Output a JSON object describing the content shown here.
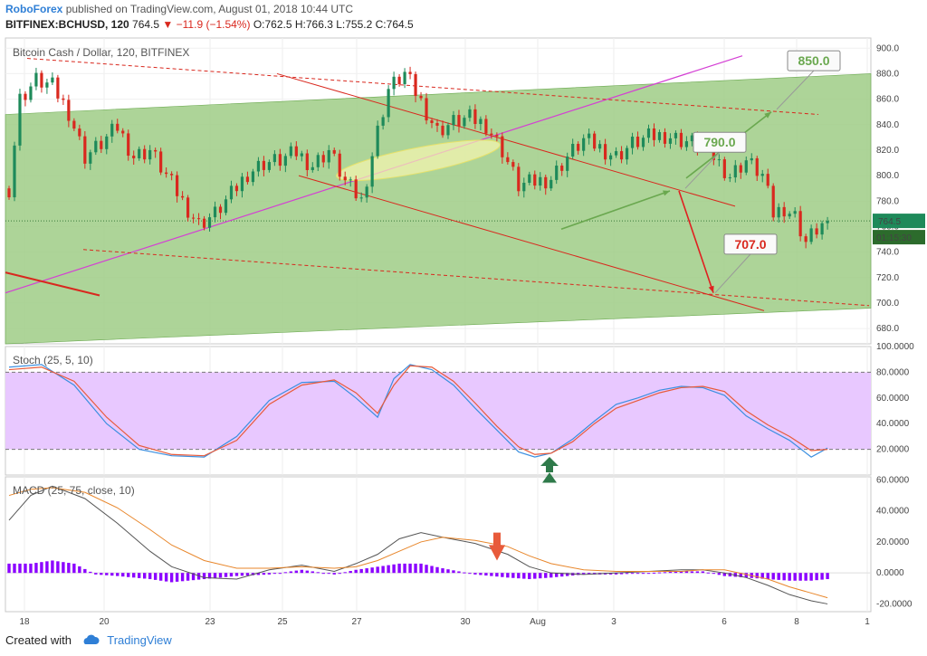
{
  "header": {
    "author": "RoboForex",
    "published": "published on TradingView.com, August 01, 2018 10:44 UTC",
    "symbol": "BITFINEX:BCHUSD, 120",
    "last": "764.5",
    "change": "−11.9 (−1.54%)",
    "open": "O:762.5",
    "high": "H:766.3",
    "low": "L:755.2",
    "close": "C:764.5"
  },
  "footer": {
    "created_with": "Created with",
    "brand": "TradingView"
  },
  "colors": {
    "up": "#1e8a5a",
    "down": "#d9281e",
    "channel_fill": "#9fcc86",
    "stoch_band": "#e8c8ff",
    "macd_hist": "#8b00ff",
    "magenta": "#d43fd4",
    "ann_green": "#6aa84f",
    "ann_red": "#e02020",
    "signal_arrow": "#2f7a4a"
  },
  "chart_data": [
    {
      "type": "candlestick",
      "title": "Bitcoin Cash / Dollar, 120, BITFINEX",
      "x_ticks": [
        "18",
        "20",
        "23",
        "25",
        "27",
        "30",
        "Aug",
        "3",
        "6",
        "8",
        "1"
      ],
      "y_ticks": [
        680,
        700,
        720,
        740,
        760,
        780,
        800,
        820,
        840,
        860,
        880,
        900
      ],
      "ylim": [
        668,
        908
      ],
      "last_price_label": "764.5",
      "countdown_label": "01:15:30",
      "annotations": [
        "850.0",
        "790.0",
        "707.0"
      ],
      "close_path": [
        {
          "t": 0,
          "c": 790
        },
        {
          "t": 2,
          "c": 860
        },
        {
          "t": 5,
          "c": 875
        },
        {
          "t": 8,
          "c": 870
        },
        {
          "t": 11,
          "c": 850
        },
        {
          "t": 14,
          "c": 815
        },
        {
          "t": 17,
          "c": 825
        },
        {
          "t": 20,
          "c": 838
        },
        {
          "t": 23,
          "c": 815
        },
        {
          "t": 26,
          "c": 820
        },
        {
          "t": 29,
          "c": 800
        },
        {
          "t": 32,
          "c": 780
        },
        {
          "t": 35,
          "c": 762
        },
        {
          "t": 38,
          "c": 770
        },
        {
          "t": 41,
          "c": 785
        },
        {
          "t": 44,
          "c": 802
        },
        {
          "t": 47,
          "c": 810
        },
        {
          "t": 50,
          "c": 812
        },
        {
          "t": 53,
          "c": 818
        },
        {
          "t": 56,
          "c": 808
        },
        {
          "t": 59,
          "c": 820
        },
        {
          "t": 62,
          "c": 795
        },
        {
          "t": 65,
          "c": 780
        },
        {
          "t": 68,
          "c": 835
        },
        {
          "t": 70,
          "c": 868
        },
        {
          "t": 73,
          "c": 880
        },
        {
          "t": 76,
          "c": 858
        },
        {
          "t": 79,
          "c": 835
        },
        {
          "t": 82,
          "c": 842
        },
        {
          "t": 85,
          "c": 845
        },
        {
          "t": 88,
          "c": 840
        },
        {
          "t": 91,
          "c": 820
        },
        {
          "t": 94,
          "c": 792
        },
        {
          "t": 97,
          "c": 795
        },
        {
          "t": 100,
          "c": 798
        },
        {
          "t": 103,
          "c": 815
        },
        {
          "t": 106,
          "c": 828
        },
        {
          "t": 109,
          "c": 822
        },
        {
          "t": 112,
          "c": 815
        },
        {
          "t": 115,
          "c": 825
        },
        {
          "t": 118,
          "c": 830
        },
        {
          "t": 121,
          "c": 832
        },
        {
          "t": 124,
          "c": 828
        },
        {
          "t": 127,
          "c": 825
        },
        {
          "t": 130,
          "c": 815
        },
        {
          "t": 133,
          "c": 800
        },
        {
          "t": 136,
          "c": 812
        },
        {
          "t": 139,
          "c": 800
        },
        {
          "t": 141,
          "c": 770
        },
        {
          "t": 143,
          "c": 775
        },
        {
          "t": 145,
          "c": 768
        },
        {
          "t": 147,
          "c": 748
        },
        {
          "t": 149,
          "c": 758
        },
        {
          "t": 151,
          "c": 764.5
        }
      ]
    },
    {
      "type": "line",
      "title": "Stoch (25, 5, 10)",
      "y_ticks": [
        20,
        40,
        60,
        80,
        100
      ],
      "ylim": [
        0,
        100
      ],
      "levels": [
        20,
        80
      ],
      "series": [
        {
          "points": [
            [
              0,
              84
            ],
            [
              6,
              86
            ],
            [
              12,
              70
            ],
            [
              18,
              40
            ],
            [
              24,
              20
            ],
            [
              30,
              15
            ],
            [
              36,
              14
            ],
            [
              42,
              30
            ],
            [
              48,
              58
            ],
            [
              54,
              72
            ],
            [
              60,
              73
            ],
            [
              64,
              60
            ],
            [
              68,
              45
            ],
            [
              71,
              75
            ],
            [
              74,
              86
            ],
            [
              78,
              82
            ],
            [
              82,
              70
            ],
            [
              86,
              52
            ],
            [
              90,
              35
            ],
            [
              94,
              18
            ],
            [
              97,
              14
            ],
            [
              100,
              17
            ],
            [
              104,
              28
            ],
            [
              108,
              42
            ],
            [
              112,
              55
            ],
            [
              116,
              60
            ],
            [
              120,
              66
            ],
            [
              124,
              69
            ],
            [
              128,
              68
            ],
            [
              132,
              62
            ],
            [
              136,
              46
            ],
            [
              140,
              36
            ],
            [
              144,
              27
            ],
            [
              148,
              14
            ],
            [
              151,
              21
            ]
          ]
        },
        {
          "points": [
            [
              0,
              82
            ],
            [
              6,
              84
            ],
            [
              12,
              73
            ],
            [
              18,
              45
            ],
            [
              24,
              23
            ],
            [
              30,
              16
            ],
            [
              36,
              15
            ],
            [
              42,
              27
            ],
            [
              48,
              55
            ],
            [
              54,
              70
            ],
            [
              60,
              74
            ],
            [
              64,
              64
            ],
            [
              68,
              48
            ],
            [
              71,
              70
            ],
            [
              74,
              85
            ],
            [
              78,
              84
            ],
            [
              82,
              73
            ],
            [
              86,
              56
            ],
            [
              90,
              38
            ],
            [
              94,
              22
            ],
            [
              97,
              16
            ],
            [
              100,
              17
            ],
            [
              104,
              26
            ],
            [
              108,
              40
            ],
            [
              112,
              52
            ],
            [
              116,
              58
            ],
            [
              120,
              64
            ],
            [
              124,
              68
            ],
            [
              128,
              69
            ],
            [
              132,
              65
            ],
            [
              136,
              50
            ],
            [
              140,
              39
            ],
            [
              144,
              30
            ],
            [
              148,
              19
            ],
            [
              151,
              20
            ]
          ]
        }
      ]
    },
    {
      "type": "line+histogram",
      "title": "MACD (25, 75, close, 10)",
      "y_ticks": [
        -20,
        0,
        20,
        40,
        60
      ],
      "ylim": [
        -25,
        62
      ],
      "series": [
        {
          "points": [
            [
              0,
              34
            ],
            [
              4,
              50
            ],
            [
              8,
              56
            ],
            [
              14,
              48
            ],
            [
              20,
              32
            ],
            [
              26,
              14
            ],
            [
              30,
              4
            ],
            [
              36,
              -3
            ],
            [
              42,
              -4
            ],
            [
              48,
              2
            ],
            [
              54,
              5
            ],
            [
              60,
              1
            ],
            [
              64,
              6
            ],
            [
              68,
              12
            ],
            [
              72,
              22
            ],
            [
              76,
              26
            ],
            [
              80,
              23
            ],
            [
              86,
              19
            ],
            [
              92,
              12
            ],
            [
              96,
              4
            ],
            [
              100,
              0
            ],
            [
              106,
              -1
            ],
            [
              112,
              0
            ],
            [
              118,
              1
            ],
            [
              124,
              2
            ],
            [
              128,
              2
            ],
            [
              132,
              0
            ],
            [
              136,
              -3
            ],
            [
              140,
              -8
            ],
            [
              144,
              -14
            ],
            [
              148,
              -18
            ],
            [
              151,
              -20
            ]
          ]
        },
        {
          "points": [
            [
              0,
              50
            ],
            [
              4,
              54
            ],
            [
              8,
              55
            ],
            [
              14,
              52
            ],
            [
              20,
              42
            ],
            [
              26,
              28
            ],
            [
              30,
              18
            ],
            [
              36,
              8
            ],
            [
              42,
              3
            ],
            [
              48,
              3
            ],
            [
              54,
              4
            ],
            [
              60,
              3
            ],
            [
              64,
              4
            ],
            [
              68,
              8
            ],
            [
              72,
              14
            ],
            [
              76,
              20
            ],
            [
              80,
              23
            ],
            [
              86,
              21
            ],
            [
              92,
              17
            ],
            [
              96,
              11
            ],
            [
              100,
              6
            ],
            [
              106,
              2
            ],
            [
              112,
              1
            ],
            [
              118,
              1
            ],
            [
              124,
              1
            ],
            [
              128,
              2
            ],
            [
              132,
              2
            ],
            [
              136,
              -1
            ],
            [
              140,
              -4
            ],
            [
              144,
              -9
            ],
            [
              148,
              -13
            ],
            [
              151,
              -16
            ]
          ]
        }
      ],
      "histogram": [
        [
          0,
          6
        ],
        [
          4,
          6
        ],
        [
          8,
          8
        ],
        [
          12,
          6
        ],
        [
          16,
          -1
        ],
        [
          20,
          -2
        ],
        [
          26,
          -4
        ],
        [
          30,
          -6
        ],
        [
          36,
          -4
        ],
        [
          42,
          -2
        ],
        [
          48,
          -1
        ],
        [
          54,
          2
        ],
        [
          60,
          -1
        ],
        [
          64,
          2
        ],
        [
          68,
          4
        ],
        [
          72,
          6
        ],
        [
          76,
          6
        ],
        [
          80,
          3
        ],
        [
          86,
          -1
        ],
        [
          92,
          -3
        ],
        [
          96,
          -4
        ],
        [
          100,
          -3
        ],
        [
          106,
          -1
        ],
        [
          112,
          -1
        ],
        [
          118,
          0
        ],
        [
          124,
          1
        ],
        [
          128,
          1
        ],
        [
          132,
          -2
        ],
        [
          136,
          -3
        ],
        [
          140,
          -4
        ],
        [
          144,
          -5
        ],
        [
          148,
          -5
        ],
        [
          151,
          -4
        ]
      ]
    }
  ]
}
